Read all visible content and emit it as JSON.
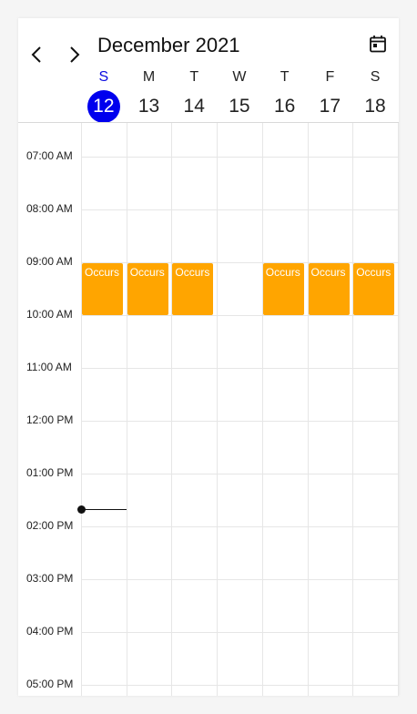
{
  "header": {
    "title": "December 2021"
  },
  "days": [
    {
      "dow": "S",
      "date": "12",
      "today": true
    },
    {
      "dow": "M",
      "date": "13",
      "today": false
    },
    {
      "dow": "T",
      "date": "14",
      "today": false
    },
    {
      "dow": "W",
      "date": "15",
      "today": false
    },
    {
      "dow": "T",
      "date": "16",
      "today": false
    },
    {
      "dow": "F",
      "date": "17",
      "today": false
    },
    {
      "dow": "S",
      "date": "18",
      "today": false
    }
  ],
  "time_labels": [
    "07:00 AM",
    "08:00 AM",
    "09:00 AM",
    "10:00 AM",
    "11:00 AM",
    "12:00 PM",
    "01:00 PM",
    "02:00 PM",
    "03:00 PM",
    "04:00 PM",
    "05:00 PM"
  ],
  "appointments": [
    {
      "day": 0,
      "subject": "Occurs"
    },
    {
      "day": 1,
      "subject": "Occurs"
    },
    {
      "day": 2,
      "subject": "Occurs"
    },
    {
      "day": 4,
      "subject": "Occurs"
    },
    {
      "day": 5,
      "subject": "Occurs"
    },
    {
      "day": 6,
      "subject": "Occurs"
    }
  ],
  "colors": {
    "today_accent": "#0000ee",
    "appointment": "#ffa500"
  },
  "icons": {
    "prev": "chevron-left-icon",
    "next": "chevron-right-icon",
    "today": "calendar-today-icon"
  }
}
